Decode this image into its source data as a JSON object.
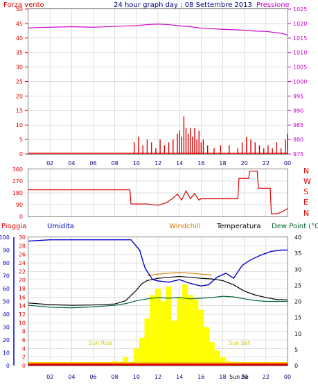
{
  "header": {
    "left_label": "Forza vento",
    "title": "24 hour graph day : 08 Settembre 2013",
    "right_label": "Pressione"
  },
  "colors": {
    "wind": "#dd0000",
    "pressure": "#cc00cc",
    "title": "#000080",
    "humidity": "#0000cc",
    "rain": "#dd0000",
    "windchill": "#dd7700",
    "temperature": "#000000",
    "dewpoint": "#006633",
    "sun": "#ffff00",
    "sun_label": "#cccc00",
    "grid": "#c0c0c0"
  },
  "bottom_panel": {
    "rain_label": "Pioggia",
    "humidity_label": "Umidita",
    "windchill_label": "Windchill",
    "temperature_label": "Temperatura",
    "dewpoint_label": "Dew Point (°C",
    "sunrise_label": "Sun Rise",
    "sunset_label": "Sun Set",
    "time_marker": "Sun Se"
  },
  "compass": [
    "N",
    "W",
    "S",
    "E",
    "N"
  ],
  "chart_data": [
    {
      "type": "line",
      "name": "wind_pressure",
      "x_ticks": [
        "02",
        "04",
        "06",
        "08",
        "10",
        "12",
        "14",
        "16",
        "18",
        "20",
        "22",
        "00"
      ],
      "y_left_ticks": [
        0,
        5,
        10,
        15,
        20,
        25,
        30,
        35,
        40,
        45,
        50
      ],
      "y_right_ticks": [
        975,
        980,
        985,
        990,
        995,
        1000,
        1005,
        1010,
        1015,
        1020,
        1025
      ],
      "ylim_left": [
        0,
        50
      ],
      "ylim_right": [
        975,
        1025
      ],
      "pressure": {
        "x": [
          0,
          2,
          4,
          6,
          8,
          10,
          11,
          12,
          13,
          14,
          15,
          16,
          18,
          20,
          21,
          22,
          23,
          23.5,
          24
        ],
        "y": [
          1018.5,
          1018.7,
          1018.9,
          1018.7,
          1019.0,
          1019.3,
          1019.6,
          1019.8,
          1019.6,
          1019.2,
          1018.9,
          1018.4,
          1018.0,
          1017.7,
          1017.4,
          1017.3,
          1016.8,
          1016.6,
          1016.0
        ]
      },
      "wind": {
        "x": [
          9.8,
          10.2,
          10.6,
          11.0,
          11.4,
          11.8,
          12.2,
          12.6,
          13.0,
          13.4,
          13.8,
          14.0,
          14.2,
          14.4,
          14.6,
          14.8,
          15.0,
          15.2,
          15.4,
          15.6,
          15.8,
          16.0,
          16.2,
          16.6,
          17.2,
          17.8,
          18.6,
          19.4,
          19.8,
          20.2,
          20.6,
          21.0,
          21.4,
          21.8,
          22.2,
          22.6,
          23.0,
          23.4,
          23.8,
          24.0
        ],
        "y": [
          4,
          6,
          3,
          5,
          4,
          2,
          5,
          3,
          4,
          5,
          7,
          8,
          6,
          13,
          9,
          7,
          9,
          6,
          9,
          5,
          8,
          4,
          5,
          3,
          2,
          3,
          3,
          2,
          4,
          6,
          5,
          4,
          3,
          2,
          3,
          2,
          4,
          2,
          5,
          7
        ]
      }
    },
    {
      "type": "line",
      "name": "wind_direction",
      "x_ticks": [
        "02",
        "04",
        "06",
        "08",
        "10",
        "12",
        "14",
        "16",
        "18",
        "20",
        "22",
        "00"
      ],
      "y_ticks": [
        0,
        90,
        180,
        270,
        360
      ],
      "ylim": [
        0,
        360
      ],
      "direction": {
        "x": [
          0,
          9.4,
          9.5,
          11.0,
          12.0,
          12.8,
          13.4,
          13.8,
          14.2,
          14.6,
          15.0,
          15.4,
          15.8,
          16.0,
          16.4,
          19.4,
          19.5,
          20.4,
          20.5,
          21.2,
          21.3,
          22.4,
          22.5,
          23.0,
          23.5,
          24.0
        ],
        "y": [
          203,
          203,
          95,
          95,
          85,
          105,
          140,
          170,
          125,
          195,
          135,
          175,
          125,
          135,
          135,
          135,
          290,
          290,
          345,
          345,
          215,
          215,
          20,
          20,
          35,
          60
        ]
      }
    },
    {
      "type": "line",
      "name": "humidity_temperature",
      "x_ticks": [
        "02",
        "04",
        "06",
        "08",
        "10",
        "12",
        "14",
        "16",
        "18",
        "20",
        "22",
        "00"
      ],
      "y_humidity_ticks": [
        0,
        10,
        20,
        30,
        40,
        50,
        60,
        70,
        80,
        90,
        100
      ],
      "y_rain_ticks": [
        0,
        2,
        4,
        6,
        8,
        10,
        12,
        14,
        16,
        18,
        20,
        22,
        24,
        26,
        28,
        30
      ],
      "y_right_ticks": [
        0,
        5,
        10,
        15,
        20,
        25,
        30,
        35,
        40
      ],
      "humidity": {
        "x": [
          0,
          2,
          4,
          6,
          8,
          9.5,
          10.3,
          10.8,
          11.5,
          12,
          13,
          14,
          15,
          16,
          16.7,
          17.5,
          18.3,
          19,
          19.8,
          20.5,
          21.5,
          22.5,
          23.5,
          24
        ],
        "y": [
          97,
          98,
          98,
          98,
          98,
          98,
          90,
          76,
          67,
          66,
          65,
          67,
          64,
          62,
          63,
          69,
          72,
          68,
          78,
          82,
          86,
          89,
          90,
          90
        ]
      },
      "temperature": {
        "x": [
          0,
          2,
          4,
          6,
          8,
          9,
          10,
          10.5,
          11,
          12,
          13,
          14,
          15,
          16,
          17,
          18,
          19,
          20,
          21,
          22,
          23,
          24
        ],
        "y": [
          19.5,
          19.0,
          18.8,
          18.9,
          19.2,
          20.2,
          23.5,
          25.5,
          26.5,
          27.2,
          27.5,
          27.8,
          27.5,
          27.2,
          27.0,
          26.5,
          25.2,
          23.2,
          22.0,
          21.2,
          20.6,
          20.5
        ]
      },
      "windchill": {
        "x": [
          11,
          12,
          13,
          14,
          15,
          16,
          17
        ],
        "y": [
          28.0,
          28.5,
          28.8,
          29.0,
          28.8,
          28.5,
          28.2
        ]
      },
      "dewpoint": {
        "x": [
          0,
          2,
          4,
          6,
          8,
          9,
          10,
          11,
          12,
          13,
          14,
          15,
          16,
          17,
          18,
          19,
          20,
          21,
          22,
          23,
          24
        ],
        "y": [
          18.8,
          18.2,
          18.0,
          18.3,
          18.8,
          19.3,
          20.2,
          20.8,
          21.2,
          21.0,
          21.2,
          20.8,
          21.0,
          21.2,
          21.6,
          21.4,
          20.8,
          20.3,
          20.0,
          20.0,
          20.0
        ]
      },
      "solar": {
        "x": [
          7.0,
          8.0,
          9.0,
          10.0,
          10.5,
          11.0,
          11.5,
          12.0,
          12.5,
          13.0,
          13.5,
          14.0,
          14.5,
          15.0,
          15.5,
          16.0,
          16.5,
          17.0,
          17.5,
          18.0,
          18.5,
          19.0,
          19.5
        ],
        "y": [
          0.4,
          1.0,
          2.0,
          4.0,
          6.5,
          11.0,
          16.5,
          18.0,
          15.0,
          18.5,
          10.5,
          16.0,
          19.0,
          16.5,
          15.5,
          13.0,
          9.0,
          5.5,
          3.5,
          2.0,
          1.0,
          0.5,
          0.2
        ]
      }
    }
  ]
}
